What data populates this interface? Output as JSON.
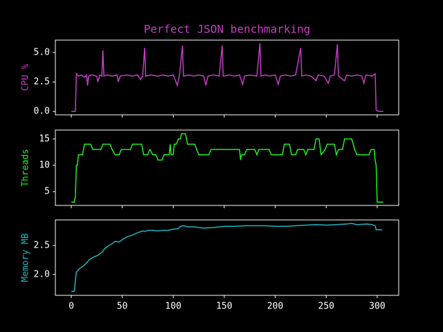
{
  "chart_data": [
    {
      "type": "line",
      "title": "Perfect JSON benchmarking",
      "ylabel": "CPU %",
      "color": "#c83cc8",
      "xlim": [
        -15.6,
        321.1
      ],
      "xticks": [
        0,
        50,
        100,
        150,
        200,
        250,
        300
      ],
      "ylim": [
        -0.29,
        6.06
      ],
      "yticks": [
        {
          "value": 0,
          "label": "0.0"
        },
        {
          "value": 2.5,
          "label": "2.5"
        },
        {
          "value": 5,
          "label": "5.0"
        }
      ],
      "x": [
        0,
        4,
        5,
        7,
        10,
        13,
        15,
        16,
        17,
        20,
        25,
        26,
        28,
        30,
        31,
        32,
        35,
        40,
        45,
        46,
        48,
        55,
        60,
        65,
        68,
        70,
        72,
        73,
        78,
        85,
        90,
        95,
        100,
        104,
        106,
        109,
        110,
        115,
        120,
        125,
        130,
        132,
        134,
        140,
        145,
        148,
        149,
        155,
        160,
        165,
        168,
        170,
        175,
        182,
        185,
        186,
        190,
        195,
        200,
        203,
        205,
        210,
        215,
        220,
        225,
        226,
        230,
        235,
        240,
        242,
        248,
        252,
        254,
        258,
        261,
        262,
        268,
        270,
        275,
        280,
        285,
        287,
        289,
        295,
        298,
        299,
        302,
        306
      ],
      "values": [
        0,
        0,
        3.2,
        3.0,
        3.1,
        2.9,
        3.1,
        2.2,
        3.0,
        3.1,
        3.0,
        2.5,
        3.1,
        3.0,
        5.2,
        3.0,
        3.1,
        3.0,
        3.1,
        2.5,
        3.0,
        3.1,
        3.0,
        3.1,
        2.7,
        3.0,
        5.4,
        3.0,
        3.1,
        3.0,
        3.1,
        3.0,
        3.1,
        2.2,
        3.0,
        5.6,
        3.0,
        3.1,
        3.0,
        3.1,
        3.0,
        2.2,
        3.0,
        3.1,
        3.0,
        5.6,
        3.0,
        3.1,
        3.0,
        3.1,
        2.3,
        3.0,
        3.1,
        3.0,
        5.8,
        3.0,
        3.1,
        3.0,
        3.1,
        2.3,
        3.0,
        3.1,
        3.0,
        3.1,
        5.4,
        3.0,
        3.1,
        3.0,
        2.6,
        3.1,
        3.0,
        2.4,
        3.0,
        3.1,
        5.7,
        3.0,
        2.6,
        3.1,
        3.0,
        3.1,
        3.0,
        2.4,
        3.1,
        3.0,
        3.2,
        0.1,
        0.0,
        0.0
      ]
    },
    {
      "type": "line",
      "ylabel": "Threads",
      "color": "#22ee22",
      "xlim": [
        -15.6,
        321.1
      ],
      "xticks": [
        0,
        50,
        100,
        150,
        200,
        250,
        300
      ],
      "ylim": [
        2.37,
        16.7
      ],
      "yticks": [
        5,
        10,
        15
      ],
      "x": [
        0,
        3,
        4,
        5,
        6,
        7,
        11,
        13,
        19,
        21,
        29,
        31,
        38,
        40,
        43,
        47,
        49,
        58,
        60,
        69,
        71,
        75,
        77,
        80,
        83,
        85,
        89,
        91,
        96,
        97,
        98,
        100,
        101,
        103,
        105,
        107,
        108,
        112,
        114,
        121,
        123,
        125,
        135,
        137,
        165,
        166,
        167,
        170,
        172,
        180,
        182,
        184,
        194,
        196,
        207,
        209,
        214,
        216,
        220,
        222,
        228,
        230,
        232,
        238,
        240,
        243,
        245,
        249,
        251,
        258,
        260,
        262,
        266,
        268,
        275,
        278,
        280,
        292,
        294,
        297,
        298,
        299,
        300,
        306
      ],
      "values": [
        3,
        3,
        4,
        10,
        10,
        12,
        12,
        14,
        14,
        13,
        13,
        14,
        14,
        13,
        12,
        12,
        13,
        13,
        14,
        14,
        12,
        12,
        13,
        12,
        12,
        11,
        11,
        12,
        12,
        14,
        12,
        12,
        14,
        14,
        15,
        15,
        16,
        16,
        14,
        14,
        13,
        12,
        12,
        13,
        13,
        11,
        12,
        12,
        13,
        13,
        12,
        13,
        13,
        12,
        12,
        14,
        14,
        12,
        12,
        13,
        13,
        12,
        13,
        13,
        15,
        15,
        12,
        13,
        14,
        14,
        12,
        13,
        13,
        15,
        15,
        13,
        12,
        12,
        13,
        13,
        11,
        10,
        3,
        3
      ]
    },
    {
      "type": "line",
      "ylabel": "Memory MB",
      "color": "#1fb5c0",
      "xlim": [
        -15.6,
        321.1
      ],
      "xticks": [
        0,
        50,
        100,
        150,
        200,
        250,
        300
      ],
      "ylim": [
        1.64,
        2.94
      ],
      "yticks": [
        {
          "value": 2.0,
          "label": "2.0"
        },
        {
          "value": 2.5,
          "label": "2.5"
        }
      ],
      "x": [
        0,
        3,
        4,
        5,
        8,
        12,
        15,
        18,
        22,
        26,
        30,
        33,
        37,
        40,
        43,
        47,
        50,
        55,
        60,
        65,
        70,
        72,
        75,
        80,
        85,
        90,
        95,
        100,
        105,
        107,
        110,
        115,
        120,
        125,
        130,
        140,
        150,
        160,
        170,
        180,
        190,
        200,
        210,
        220,
        230,
        240,
        250,
        260,
        270,
        275,
        280,
        290,
        295,
        298,
        299,
        305
      ],
      "values": [
        1.71,
        1.71,
        1.9,
        2.04,
        2.1,
        2.15,
        2.2,
        2.26,
        2.3,
        2.33,
        2.38,
        2.45,
        2.5,
        2.53,
        2.57,
        2.56,
        2.6,
        2.65,
        2.68,
        2.72,
        2.75,
        2.74,
        2.76,
        2.76,
        2.75,
        2.76,
        2.76,
        2.78,
        2.79,
        2.83,
        2.84,
        2.82,
        2.82,
        2.81,
        2.8,
        2.81,
        2.83,
        2.83,
        2.84,
        2.84,
        2.84,
        2.83,
        2.83,
        2.84,
        2.85,
        2.86,
        2.85,
        2.86,
        2.87,
        2.88,
        2.86,
        2.87,
        2.86,
        2.84,
        2.77,
        2.77
      ]
    }
  ]
}
